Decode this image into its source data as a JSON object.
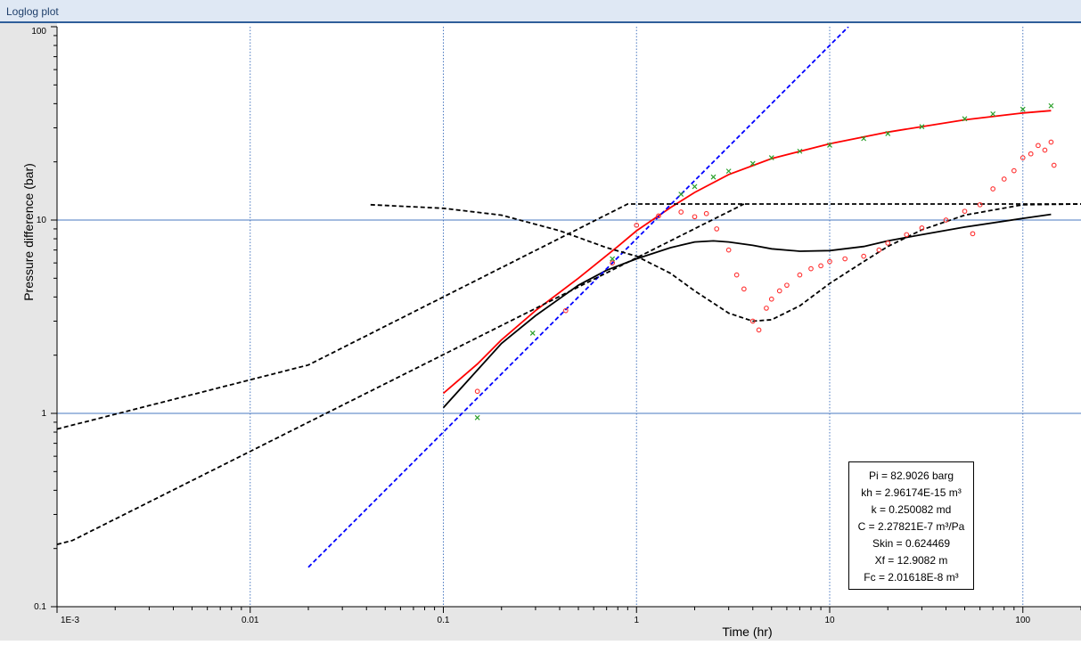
{
  "window": {
    "title": "Loglog plot"
  },
  "chart_data": {
    "type": "scatter",
    "scale": "log-log",
    "xlabel": "Time (hr)",
    "ylabel": "Pressure difference (bar)",
    "xlim": [
      0.001,
      200
    ],
    "ylim": [
      0.1,
      100
    ],
    "x_ticks": [
      "1E-3",
      "0.01",
      "0.1",
      "1",
      "10",
      "100"
    ],
    "y_ticks": [
      "0.1",
      "1",
      "10",
      "100"
    ],
    "grid": true,
    "colors": {
      "model_pressure": "#ff0000",
      "model_derivative": "#000000",
      "unit_slope": "#0000ff",
      "data_pressure": "#2aa02a",
      "data_derivative": "#ff3030",
      "dashed": "#000000",
      "grid": "#4a78c0"
    },
    "series": [
      {
        "style": "solid-red",
        "points": [
          [
            0.1,
            1.27
          ],
          [
            0.15,
            1.8
          ],
          [
            0.2,
            2.4
          ],
          [
            0.3,
            3.4
          ],
          [
            0.5,
            5.0
          ],
          [
            0.8,
            7.3
          ],
          [
            1.0,
            8.8
          ],
          [
            1.5,
            11.6
          ],
          [
            2,
            13.9
          ],
          [
            3,
            17.2
          ],
          [
            5,
            20.8
          ],
          [
            10,
            24.8
          ],
          [
            20,
            28.5
          ],
          [
            50,
            33.0
          ],
          [
            100,
            35.8
          ],
          [
            140,
            36.8
          ]
        ]
      },
      {
        "style": "solid-black",
        "points": [
          [
            0.1,
            1.07
          ],
          [
            0.2,
            2.3
          ],
          [
            0.3,
            3.2
          ],
          [
            0.5,
            4.6
          ],
          [
            0.7,
            5.5
          ],
          [
            1.0,
            6.3
          ],
          [
            1.5,
            7.2
          ],
          [
            2,
            7.7
          ],
          [
            2.5,
            7.8
          ],
          [
            3,
            7.7
          ],
          [
            4,
            7.4
          ],
          [
            5,
            7.1
          ],
          [
            7,
            6.9
          ],
          [
            10,
            6.95
          ],
          [
            15,
            7.3
          ],
          [
            20,
            7.8
          ],
          [
            30,
            8.4
          ],
          [
            50,
            9.2
          ],
          [
            100,
            10.2
          ],
          [
            140,
            10.7
          ]
        ]
      },
      {
        "style": "dashed-blue",
        "points": [
          [
            0.02,
            0.16
          ],
          [
            0.1,
            0.8
          ],
          [
            1,
            8.0
          ],
          [
            10,
            80
          ],
          [
            12.5,
            100
          ]
        ]
      },
      {
        "style": "dashed-black",
        "points": [
          [
            0.001,
            0.83
          ],
          [
            0.02,
            1.78
          ],
          [
            0.9,
            12.1
          ],
          [
            200,
            12.1
          ]
        ]
      },
      {
        "style": "dashed-black",
        "points": [
          [
            0.001,
            0.21
          ],
          [
            0.0012,
            0.22
          ],
          [
            3.6,
            12.1
          ]
        ]
      },
      {
        "style": "dashed-black",
        "points": [
          [
            0.042,
            12.0
          ],
          [
            0.1,
            11.5
          ],
          [
            0.2,
            10.6
          ],
          [
            0.4,
            8.8
          ],
          [
            0.7,
            7.2
          ],
          [
            1,
            6.5
          ],
          [
            1.5,
            5.3
          ],
          [
            2,
            4.3
          ],
          [
            3,
            3.3
          ],
          [
            4,
            3.0
          ],
          [
            5,
            3.05
          ],
          [
            7,
            3.6
          ],
          [
            10,
            4.7
          ],
          [
            15,
            6.1
          ],
          [
            20,
            7.3
          ],
          [
            30,
            8.9
          ],
          [
            50,
            10.6
          ],
          [
            100,
            12.0
          ],
          [
            200,
            12.1
          ]
        ]
      },
      {
        "style": "x-green",
        "points": [
          [
            0.15,
            0.95
          ],
          [
            0.29,
            2.6
          ],
          [
            0.75,
            6.3
          ],
          [
            1.7,
            13.6
          ],
          [
            2,
            14.9
          ],
          [
            2.5,
            16.7
          ],
          [
            3,
            17.9
          ],
          [
            4,
            19.6
          ],
          [
            5,
            21.0
          ],
          [
            7,
            22.7
          ],
          [
            10,
            24.4
          ],
          [
            15,
            26.4
          ],
          [
            20,
            28.0
          ],
          [
            30,
            30.4
          ],
          [
            50,
            33.4
          ],
          [
            70,
            35.4
          ],
          [
            100,
            37.4
          ],
          [
            140,
            39.0
          ]
        ]
      },
      {
        "style": "o-red",
        "points": [
          [
            0.15,
            1.3
          ],
          [
            0.43,
            3.4
          ],
          [
            0.75,
            6.0
          ],
          [
            1.0,
            9.4
          ],
          [
            1.3,
            10.5
          ],
          [
            1.7,
            11.0
          ],
          [
            2.0,
            10.4
          ],
          [
            2.3,
            10.8
          ],
          [
            2.6,
            9.0
          ],
          [
            3.0,
            7.0
          ],
          [
            3.3,
            5.2
          ],
          [
            3.6,
            4.4
          ],
          [
            4.0,
            3.0
          ],
          [
            4.3,
            2.7
          ],
          [
            4.7,
            3.5
          ],
          [
            5.0,
            3.9
          ],
          [
            5.5,
            4.3
          ],
          [
            6.0,
            4.6
          ],
          [
            7,
            5.2
          ],
          [
            8,
            5.6
          ],
          [
            9,
            5.8
          ],
          [
            10,
            6.1
          ],
          [
            12,
            6.3
          ],
          [
            15,
            6.5
          ],
          [
            18,
            7.0
          ],
          [
            20,
            7.6
          ],
          [
            25,
            8.4
          ],
          [
            30,
            9.1
          ],
          [
            40,
            10.0
          ],
          [
            50,
            11.1
          ],
          [
            55,
            8.5
          ],
          [
            60,
            12.0
          ],
          [
            70,
            14.5
          ],
          [
            80,
            16.3
          ],
          [
            90,
            18.0
          ],
          [
            100,
            21.0
          ],
          [
            110,
            22.0
          ],
          [
            120,
            24.3
          ],
          [
            130,
            23.0
          ],
          [
            140,
            25.3
          ],
          [
            145,
            19.2
          ]
        ]
      }
    ]
  },
  "params": {
    "lines": [
      "Pi = 82.9026 barg",
      "kh = 2.96174E-15 m³",
      "k = 0.250082 md",
      "C = 2.27821E-7 m³/Pa",
      "Skin = 0.624469",
      "Xf = 12.9082 m",
      "Fc = 2.01618E-8 m³"
    ]
  }
}
